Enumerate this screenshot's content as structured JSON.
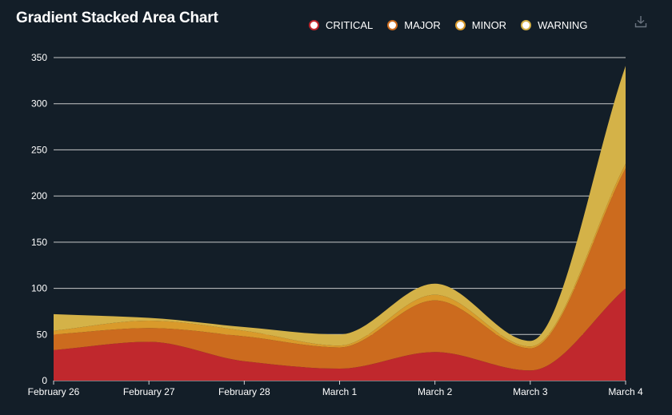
{
  "chart_data": {
    "type": "area",
    "stacked": true,
    "title": "Gradient Stacked Area Chart",
    "categories": [
      "February 26",
      "February 27",
      "February 28",
      "March 1",
      "March 2",
      "March 3",
      "March 4"
    ],
    "series": [
      {
        "name": "CRITICAL",
        "color": "#c0282d",
        "values": [
          33,
          42,
          21,
          13,
          31,
          11,
          100
        ]
      },
      {
        "name": "MAJOR",
        "color": "#cc6b1e",
        "values": [
          17,
          15,
          27,
          23,
          56,
          24,
          130
        ]
      },
      {
        "name": "MINOR",
        "color": "#d99a2b",
        "values": [
          4,
          8,
          6,
          2,
          6,
          2,
          5
        ]
      },
      {
        "name": "WARNING",
        "color": "#d4b248",
        "values": [
          18,
          3,
          4,
          12,
          12,
          6,
          106
        ]
      }
    ],
    "ylim": [
      0,
      350
    ],
    "yticks": [
      0,
      50,
      100,
      150,
      200,
      250,
      300,
      350
    ],
    "grid": true,
    "legend_position": "top-center"
  },
  "toolbar": {
    "download_icon": "download-icon"
  }
}
